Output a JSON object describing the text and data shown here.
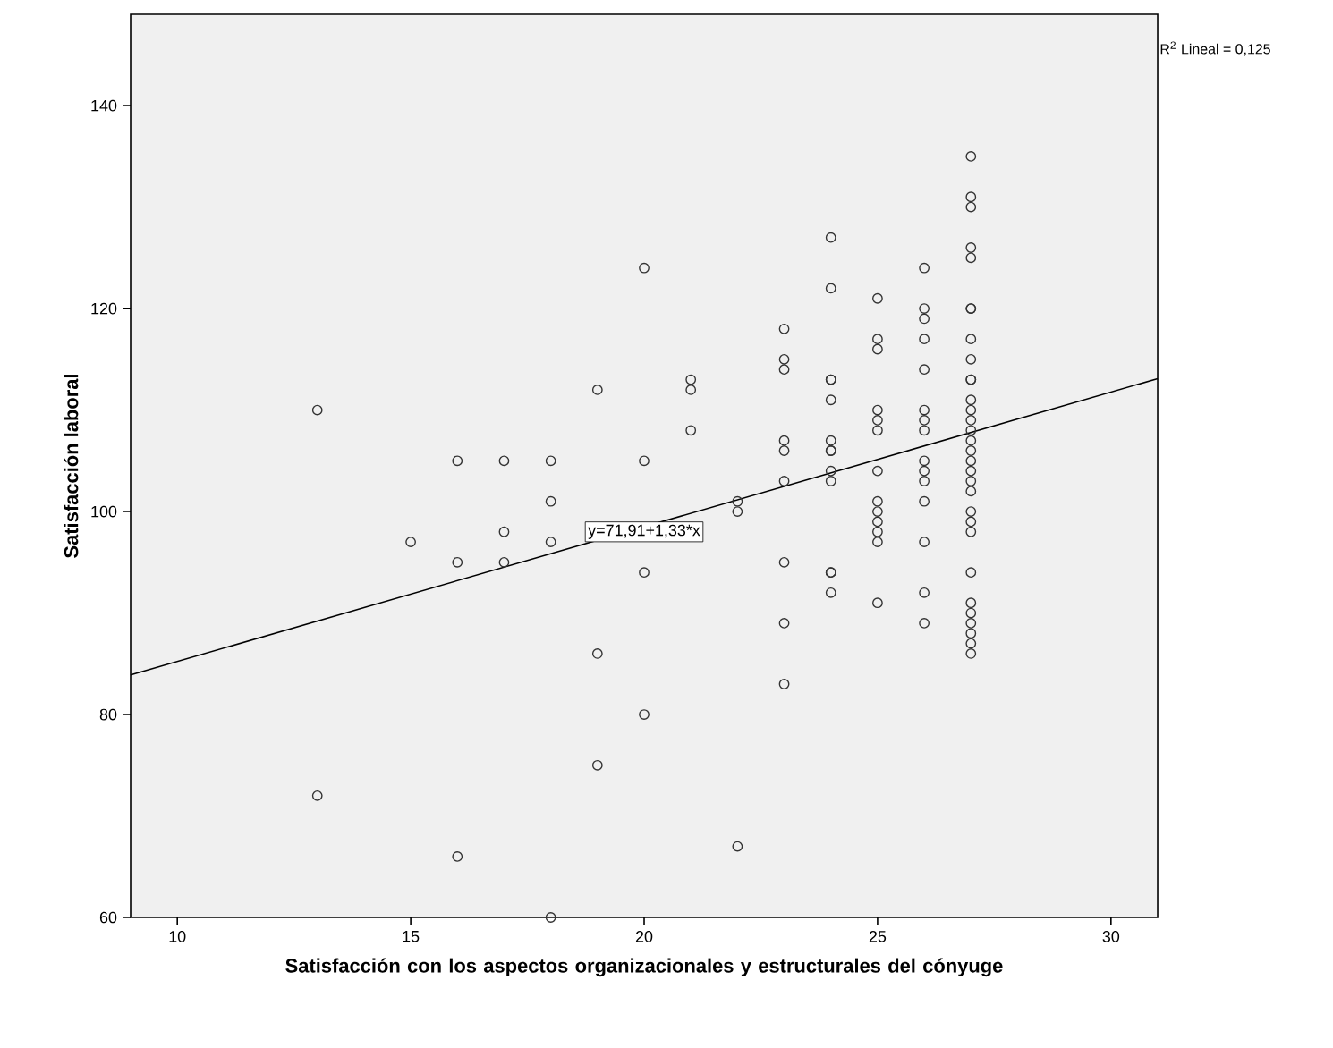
{
  "chart_data": {
    "type": "scatter",
    "xlabel": "Satisfacción con los aspectos organizacionales y estructurales del cónyuge",
    "ylabel": "Satisfacción laboral",
    "xlim": [
      9,
      31
    ],
    "ylim": [
      60,
      149
    ],
    "xticks": [
      10,
      15,
      20,
      25,
      30
    ],
    "yticks": [
      60,
      80,
      100,
      120,
      140
    ],
    "annotations": [
      "R$^{2}$ Lineal = 0,125",
      {
        "text": "y=71,91+1,33*x",
        "x": 20,
        "y": 98
      }
    ],
    "series": [
      {
        "marker": "circle",
        "color": "#333333",
        "x": [
          13,
          13,
          15,
          16,
          16,
          16,
          17,
          17,
          17,
          18,
          18,
          18,
          18,
          19,
          19,
          19,
          20,
          20,
          20,
          20,
          21,
          21,
          21,
          22,
          22,
          22,
          23,
          23,
          23,
          23,
          23,
          23,
          23,
          23,
          23,
          24,
          24,
          24,
          24,
          24,
          24,
          24,
          24,
          24,
          24,
          24,
          24,
          24,
          25,
          25,
          25,
          25,
          25,
          25,
          25,
          25,
          25,
          25,
          25,
          25,
          25,
          26,
          26,
          26,
          26,
          26,
          26,
          26,
          26,
          26,
          26,
          26,
          26,
          26,
          26,
          26,
          27,
          27,
          27,
          27,
          27,
          27,
          27,
          27,
          27,
          27,
          27,
          27,
          27,
          27,
          27,
          27,
          27,
          27,
          27,
          27,
          27,
          27,
          27,
          27,
          27,
          27,
          27,
          27,
          27,
          27,
          27
        ],
        "values": [
          110,
          72,
          97,
          105,
          95,
          66,
          105,
          98,
          95,
          105,
          101,
          97,
          60,
          112,
          86,
          75,
          124,
          105,
          94,
          80,
          113,
          112,
          108,
          101,
          100,
          67,
          118,
          115,
          114,
          107,
          106,
          103,
          95,
          89,
          83,
          127,
          122,
          113,
          113,
          111,
          107,
          106,
          106,
          104,
          103,
          94,
          94,
          92,
          121,
          117,
          116,
          110,
          109,
          108,
          104,
          101,
          100,
          99,
          98,
          97,
          91,
          124,
          120,
          119,
          117,
          114,
          110,
          109,
          108,
          105,
          104,
          103,
          101,
          97,
          92,
          89,
          135,
          131,
          130,
          126,
          125,
          120,
          120,
          117,
          115,
          113,
          113,
          111,
          110,
          109,
          108,
          107,
          106,
          105,
          104,
          103,
          102,
          100,
          99,
          98,
          94,
          91,
          90,
          89,
          88,
          87,
          86
        ]
      },
      {
        "type": "line",
        "marker": "none",
        "color": "#000000",
        "x": [
          9,
          31
        ],
        "values": [
          83.9,
          113.1
        ]
      }
    ]
  }
}
